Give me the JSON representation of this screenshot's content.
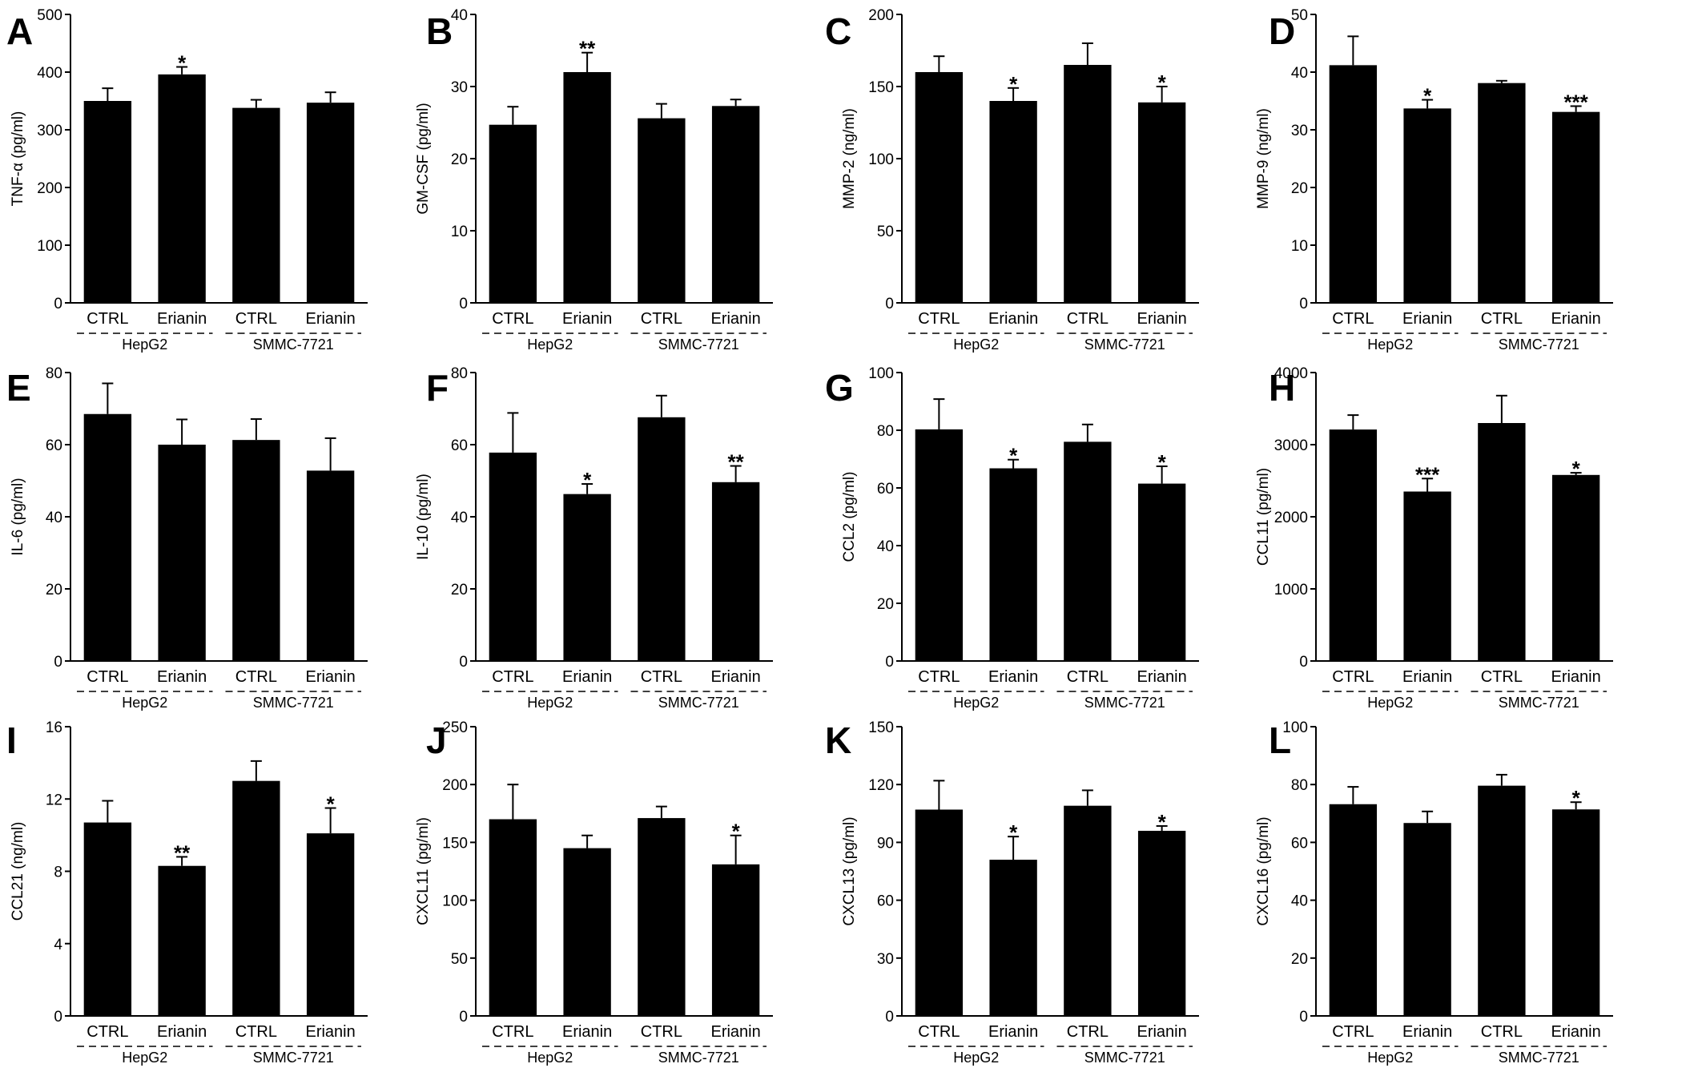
{
  "style": {
    "bar_color": "#000000",
    "background": "#ffffff"
  },
  "chart_data": [
    {
      "panel": "A",
      "type": "bar",
      "ylabel": "TNF-α (pg/ml)",
      "ylim": [
        0,
        500
      ],
      "yticks": [
        0,
        100,
        200,
        300,
        400,
        500
      ],
      "categories": [
        "CTRL",
        "Erianin",
        "CTRL",
        "Erianin"
      ],
      "groups": [
        "HepG2",
        "SMMC-7721"
      ],
      "values": [
        350,
        396,
        338,
        347
      ],
      "errors": [
        22,
        13,
        14,
        18
      ],
      "significance": [
        "",
        "*",
        "",
        ""
      ]
    },
    {
      "panel": "B",
      "type": "bar",
      "ylabel": "GM-CSF (pg/ml)",
      "ylim": [
        0,
        40
      ],
      "yticks": [
        0,
        10,
        20,
        30,
        40
      ],
      "categories": [
        "CTRL",
        "Erianin",
        "CTRL",
        "Erianin"
      ],
      "groups": [
        "HepG2",
        "SMMC-7721"
      ],
      "values": [
        24.7,
        32.0,
        25.6,
        27.3
      ],
      "errors": [
        2.5,
        2.7,
        2.0,
        0.9
      ],
      "significance": [
        "",
        "**",
        "",
        ""
      ]
    },
    {
      "panel": "C",
      "type": "bar",
      "ylabel": "MMP-2 (ng/ml)",
      "ylim": [
        0,
        200
      ],
      "yticks": [
        0,
        50,
        100,
        150,
        200
      ],
      "categories": [
        "CTRL",
        "Erianin",
        "CTRL",
        "Erianin"
      ],
      "groups": [
        "HepG2",
        "SMMC-7721"
      ],
      "values": [
        160,
        140,
        165,
        139
      ],
      "errors": [
        11,
        9,
        15,
        11
      ],
      "significance": [
        "",
        "*",
        "",
        "*"
      ]
    },
    {
      "panel": "D",
      "type": "bar",
      "ylabel": "MMP-9 (ng/ml)",
      "ylim": [
        0,
        50
      ],
      "yticks": [
        0,
        10,
        20,
        30,
        40,
        50
      ],
      "categories": [
        "CTRL",
        "Erianin",
        "CTRL",
        "Erianin"
      ],
      "groups": [
        "HepG2",
        "SMMC-7721"
      ],
      "values": [
        41.2,
        33.7,
        38.1,
        33.1
      ],
      "errors": [
        5.0,
        1.5,
        0.4,
        1.0
      ],
      "significance": [
        "",
        "*",
        "",
        "***"
      ]
    },
    {
      "panel": "E",
      "type": "bar",
      "ylabel": "IL-6 (pg/ml)",
      "ylim": [
        0,
        80
      ],
      "yticks": [
        0,
        20,
        40,
        60,
        80
      ],
      "categories": [
        "CTRL",
        "Erianin",
        "CTRL",
        "Erianin"
      ],
      "groups": [
        "HepG2",
        "SMMC-7721"
      ],
      "values": [
        68.5,
        60.0,
        61.3,
        52.8
      ],
      "errors": [
        8.5,
        7.0,
        5.8,
        9.0
      ],
      "significance": [
        "",
        "",
        "",
        ""
      ]
    },
    {
      "panel": "F",
      "type": "bar",
      "ylabel": "IL-10 (pg/ml)",
      "ylim": [
        0,
        80
      ],
      "yticks": [
        0,
        20,
        40,
        60,
        80
      ],
      "categories": [
        "CTRL",
        "Erianin",
        "CTRL",
        "Erianin"
      ],
      "groups": [
        "HepG2",
        "SMMC-7721"
      ],
      "values": [
        57.8,
        46.3,
        67.6,
        49.6
      ],
      "errors": [
        11,
        2.8,
        6.0,
        4.5
      ],
      "significance": [
        "",
        "*",
        "",
        "**"
      ]
    },
    {
      "panel": "G",
      "type": "bar",
      "ylabel": "CCL2 (pg/ml)",
      "ylim": [
        0,
        100
      ],
      "yticks": [
        0,
        20,
        40,
        60,
        80,
        100
      ],
      "categories": [
        "CTRL",
        "Erianin",
        "CTRL",
        "Erianin"
      ],
      "groups": [
        "HepG2",
        "SMMC-7721"
      ],
      "values": [
        80.3,
        66.8,
        76.0,
        61.5
      ],
      "errors": [
        10.5,
        3.0,
        6.0,
        6.0
      ],
      "significance": [
        "",
        "*",
        "",
        "*"
      ]
    },
    {
      "panel": "H",
      "type": "bar",
      "ylabel": "CCL11 (pg/ml)",
      "ylim": [
        0,
        4000
      ],
      "yticks": [
        0,
        1000,
        2000,
        3000,
        4000
      ],
      "categories": [
        "CTRL",
        "Erianin",
        "CTRL",
        "Erianin"
      ],
      "groups": [
        "HepG2",
        "SMMC-7721"
      ],
      "values": [
        3210,
        2350,
        3300,
        2580
      ],
      "errors": [
        200,
        180,
        380,
        30
      ],
      "significance": [
        "",
        "***",
        "",
        "*"
      ]
    },
    {
      "panel": "I",
      "type": "bar",
      "ylabel": "CCL21 (ng/ml)",
      "ylim": [
        0,
        16
      ],
      "yticks": [
        0,
        4,
        8,
        12,
        16
      ],
      "categories": [
        "CTRL",
        "Erianin",
        "CTRL",
        "Erianin"
      ],
      "groups": [
        "HepG2",
        "SMMC-7721"
      ],
      "values": [
        10.7,
        8.3,
        13.0,
        10.1
      ],
      "errors": [
        1.2,
        0.5,
        1.1,
        1.4
      ],
      "significance": [
        "",
        "**",
        "",
        "*"
      ]
    },
    {
      "panel": "J",
      "type": "bar",
      "ylabel": "CXCL11 (pg/ml)",
      "ylim": [
        0,
        250
      ],
      "yticks": [
        0,
        50,
        100,
        150,
        200,
        250
      ],
      "categories": [
        "CTRL",
        "Erianin",
        "CTRL",
        "Erianin"
      ],
      "groups": [
        "HepG2",
        "SMMC-7721"
      ],
      "values": [
        170,
        145,
        171,
        131
      ],
      "errors": [
        30,
        11,
        10,
        25
      ],
      "significance": [
        "",
        "",
        "",
        "*"
      ]
    },
    {
      "panel": "K",
      "type": "bar",
      "ylabel": "CXCL13 (pg/ml)",
      "ylim": [
        0,
        150
      ],
      "yticks": [
        0,
        30,
        60,
        90,
        120,
        150
      ],
      "categories": [
        "CTRL",
        "Erianin",
        "CTRL",
        "Erianin"
      ],
      "groups": [
        "HepG2",
        "SMMC-7721"
      ],
      "values": [
        107,
        81,
        109,
        96
      ],
      "errors": [
        15,
        12,
        8,
        2.5
      ],
      "significance": [
        "",
        "*",
        "",
        "*"
      ]
    },
    {
      "panel": "L",
      "type": "bar",
      "ylabel": "CXCL16 (pg/ml)",
      "ylim": [
        0,
        100
      ],
      "yticks": [
        0,
        20,
        40,
        60,
        80,
        100
      ],
      "categories": [
        "CTRL",
        "Erianin",
        "CTRL",
        "Erianin"
      ],
      "groups": [
        "HepG2",
        "SMMC-7721"
      ],
      "values": [
        73.2,
        66.7,
        79.6,
        71.4
      ],
      "errors": [
        6.0,
        4.0,
        3.8,
        2.5
      ],
      "significance": [
        "",
        "",
        "",
        "*"
      ]
    }
  ]
}
